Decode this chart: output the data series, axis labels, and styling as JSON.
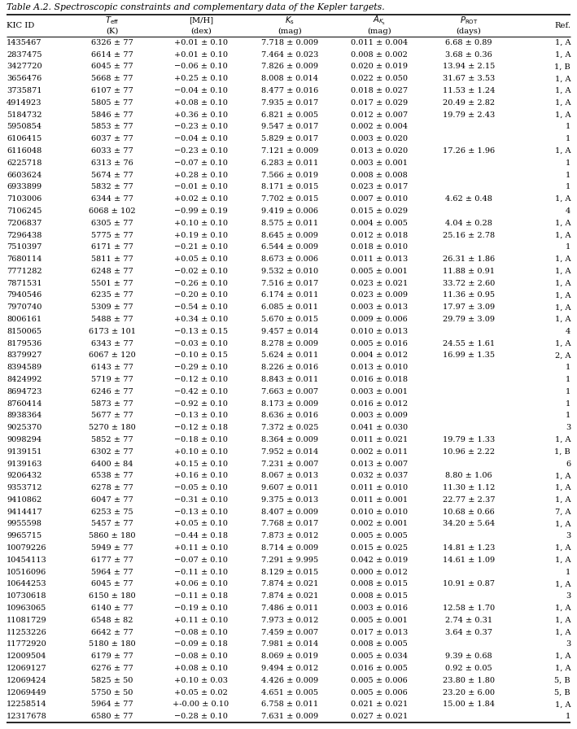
{
  "title": "Table A.2. Spectroscopic constraints and complementary data of the Kepler targets.",
  "headers_l1": [
    "KIC ID",
    "$T_{\\mathrm{eff}}$",
    "[M/H]",
    "$K_{\\mathrm{s}}$",
    "$A_{K_{\\mathrm{s}}}$",
    "$P_{\\mathrm{ROT}}$",
    "Ref."
  ],
  "headers_l2": [
    "",
    "(K)",
    "(dex)",
    "(mag)",
    "(mag)",
    "(days)",
    ""
  ],
  "rows": [
    [
      "1435467",
      "6326 ± 77",
      "+0.01 ± 0.10",
      "7.718 ± 0.009",
      "0.011 ± 0.004",
      "6.68 ± 0.89",
      "1, A"
    ],
    [
      "2837475",
      "6614 ± 77",
      "+0.01 ± 0.10",
      "7.464 ± 0.023",
      "0.008 ± 0.002",
      "3.68 ± 0.36",
      "1, A"
    ],
    [
      "3427720",
      "6045 ± 77",
      "−0.06 ± 0.10",
      "7.826 ± 0.009",
      "0.020 ± 0.019",
      "13.94 ± 2.15",
      "1, B"
    ],
    [
      "3656476",
      "5668 ± 77",
      "+0.25 ± 0.10",
      "8.008 ± 0.014",
      "0.022 ± 0.050",
      "31.67 ± 3.53",
      "1, A"
    ],
    [
      "3735871",
      "6107 ± 77",
      "−0.04 ± 0.10",
      "8.477 ± 0.016",
      "0.018 ± 0.027",
      "11.53 ± 1.24",
      "1, A"
    ],
    [
      "4914923",
      "5805 ± 77",
      "+0.08 ± 0.10",
      "7.935 ± 0.017",
      "0.017 ± 0.029",
      "20.49 ± 2.82",
      "1, A"
    ],
    [
      "5184732",
      "5846 ± 77",
      "+0.36 ± 0.10",
      "6.821 ± 0.005",
      "0.012 ± 0.007",
      "19.79 ± 2.43",
      "1, A"
    ],
    [
      "5950854",
      "5853 ± 77",
      "−0.23 ± 0.10",
      "9.547 ± 0.017",
      "0.002 ± 0.004",
      "",
      "1"
    ],
    [
      "6106415",
      "6037 ± 77",
      "−0.04 ± 0.10",
      "5.829 ± 0.017",
      "0.003 ± 0.020",
      "",
      "1"
    ],
    [
      "6116048",
      "6033 ± 77",
      "−0.23 ± 0.10",
      "7.121 ± 0.009",
      "0.013 ± 0.020",
      "17.26 ± 1.96",
      "1, A"
    ],
    [
      "6225718",
      "6313 ± 76",
      "−0.07 ± 0.10",
      "6.283 ± 0.011",
      "0.003 ± 0.001",
      "",
      "1"
    ],
    [
      "6603624",
      "5674 ± 77",
      "+0.28 ± 0.10",
      "7.566 ± 0.019",
      "0.008 ± 0.008",
      "",
      "1"
    ],
    [
      "6933899",
      "5832 ± 77",
      "−0.01 ± 0.10",
      "8.171 ± 0.015",
      "0.023 ± 0.017",
      "",
      "1"
    ],
    [
      "7103006",
      "6344 ± 77",
      "+0.02 ± 0.10",
      "7.702 ± 0.015",
      "0.007 ± 0.010",
      "4.62 ± 0.48",
      "1, A"
    ],
    [
      "7106245",
      "6068 ± 102",
      "−0.99 ± 0.19",
      "9.419 ± 0.006",
      "0.015 ± 0.029",
      "",
      "4"
    ],
    [
      "7206837",
      "6305 ± 77",
      "+0.10 ± 0.10",
      "8.575 ± 0.011",
      "0.004 ± 0.005",
      "4.04 ± 0.28",
      "1, A"
    ],
    [
      "7296438",
      "5775 ± 77",
      "+0.19 ± 0.10",
      "8.645 ± 0.009",
      "0.012 ± 0.018",
      "25.16 ± 2.78",
      "1, A"
    ],
    [
      "7510397",
      "6171 ± 77",
      "−0.21 ± 0.10",
      "6.544 ± 0.009",
      "0.018 ± 0.010",
      "",
      "1"
    ],
    [
      "7680114",
      "5811 ± 77",
      "+0.05 ± 0.10",
      "8.673 ± 0.006",
      "0.011 ± 0.013",
      "26.31 ± 1.86",
      "1, A"
    ],
    [
      "7771282",
      "6248 ± 77",
      "−0.02 ± 0.10",
      "9.532 ± 0.010",
      "0.005 ± 0.001",
      "11.88 ± 0.91",
      "1, A"
    ],
    [
      "7871531",
      "5501 ± 77",
      "−0.26 ± 0.10",
      "7.516 ± 0.017",
      "0.023 ± 0.021",
      "33.72 ± 2.60",
      "1, A"
    ],
    [
      "7940546",
      "6235 ± 77",
      "−0.20 ± 0.10",
      "6.174 ± 0.011",
      "0.023 ± 0.009",
      "11.36 ± 0.95",
      "1, A"
    ],
    [
      "7970740",
      "5309 ± 77",
      "−0.54 ± 0.10",
      "6.085 ± 0.011",
      "0.003 ± 0.013",
      "17.97 ± 3.09",
      "1, A"
    ],
    [
      "8006161",
      "5488 ± 77",
      "+0.34 ± 0.10",
      "5.670 ± 0.015",
      "0.009 ± 0.006",
      "29.79 ± 3.09",
      "1, A"
    ],
    [
      "8150065",
      "6173 ± 101",
      "−0.13 ± 0.15",
      "9.457 ± 0.014",
      "0.010 ± 0.013",
      "",
      "4"
    ],
    [
      "8179536",
      "6343 ± 77",
      "−0.03 ± 0.10",
      "8.278 ± 0.009",
      "0.005 ± 0.016",
      "24.55 ± 1.61",
      "1, A"
    ],
    [
      "8379927",
      "6067 ± 120",
      "−0.10 ± 0.15",
      "5.624 ± 0.011",
      "0.004 ± 0.012",
      "16.99 ± 1.35",
      "2, A"
    ],
    [
      "8394589",
      "6143 ± 77",
      "−0.29 ± 0.10",
      "8.226 ± 0.016",
      "0.013 ± 0.010",
      "",
      "1"
    ],
    [
      "8424992",
      "5719 ± 77",
      "−0.12 ± 0.10",
      "8.843 ± 0.011",
      "0.016 ± 0.018",
      "",
      "1"
    ],
    [
      "8694723",
      "6246 ± 77",
      "−0.42 ± 0.10",
      "7.663 ± 0.007",
      "0.003 ± 0.001",
      "",
      "1"
    ],
    [
      "8760414",
      "5873 ± 77",
      "−0.92 ± 0.10",
      "8.173 ± 0.009",
      "0.016 ± 0.012",
      "",
      "1"
    ],
    [
      "8938364",
      "5677 ± 77",
      "−0.13 ± 0.10",
      "8.636 ± 0.016",
      "0.003 ± 0.009",
      "",
      "1"
    ],
    [
      "9025370",
      "5270 ± 180",
      "−0.12 ± 0.18",
      "7.372 ± 0.025",
      "0.041 ± 0.030",
      "",
      "3"
    ],
    [
      "9098294",
      "5852 ± 77",
      "−0.18 ± 0.10",
      "8.364 ± 0.009",
      "0.011 ± 0.021",
      "19.79 ± 1.33",
      "1, A"
    ],
    [
      "9139151",
      "6302 ± 77",
      "+0.10 ± 0.10",
      "7.952 ± 0.014",
      "0.002 ± 0.011",
      "10.96 ± 2.22",
      "1, B"
    ],
    [
      "9139163",
      "6400 ± 84",
      "+0.15 ± 0.10",
      "7.231 ± 0.007",
      "0.013 ± 0.007",
      "",
      "6"
    ],
    [
      "9206432",
      "6538 ± 77",
      "+0.16 ± 0.10",
      "8.067 ± 0.013",
      "0.032 ± 0.037",
      "8.80 ± 1.06",
      "1, A"
    ],
    [
      "9353712",
      "6278 ± 77",
      "−0.05 ± 0.10",
      "9.607 ± 0.011",
      "0.011 ± 0.010",
      "11.30 ± 1.12",
      "1, A"
    ],
    [
      "9410862",
      "6047 ± 77",
      "−0.31 ± 0.10",
      "9.375 ± 0.013",
      "0.011 ± 0.001",
      "22.77 ± 2.37",
      "1, A"
    ],
    [
      "9414417",
      "6253 ± 75",
      "−0.13 ± 0.10",
      "8.407 ± 0.009",
      "0.010 ± 0.010",
      "10.68 ± 0.66",
      "7, A"
    ],
    [
      "9955598",
      "5457 ± 77",
      "+0.05 ± 0.10",
      "7.768 ± 0.017",
      "0.002 ± 0.001",
      "34.20 ± 5.64",
      "1, A"
    ],
    [
      "9965715",
      "5860 ± 180",
      "−0.44 ± 0.18",
      "7.873 ± 0.012",
      "0.005 ± 0.005",
      "",
      "3"
    ],
    [
      "10079226",
      "5949 ± 77",
      "+0.11 ± 0.10",
      "8.714 ± 0.009",
      "0.015 ± 0.025",
      "14.81 ± 1.23",
      "1, A"
    ],
    [
      "10454113",
      "6177 ± 77",
      "−0.07 ± 0.10",
      "7.291 ± 9.995",
      "0.042 ± 0.019",
      "14.61 ± 1.09",
      "1, A"
    ],
    [
      "10516096",
      "5964 ± 77",
      "−0.11 ± 0.10",
      "8.129 ± 0.015",
      "0.000 ± 0.012",
      "",
      "1"
    ],
    [
      "10644253",
      "6045 ± 77",
      "+0.06 ± 0.10",
      "7.874 ± 0.021",
      "0.008 ± 0.015",
      "10.91 ± 0.87",
      "1, A"
    ],
    [
      "10730618",
      "6150 ± 180",
      "−0.11 ± 0.18",
      "7.874 ± 0.021",
      "0.008 ± 0.015",
      "",
      "3"
    ],
    [
      "10963065",
      "6140 ± 77",
      "−0.19 ± 0.10",
      "7.486 ± 0.011",
      "0.003 ± 0.016",
      "12.58 ± 1.70",
      "1, A"
    ],
    [
      "11081729",
      "6548 ± 82",
      "+0.11 ± 0.10",
      "7.973 ± 0.012",
      "0.005 ± 0.001",
      "2.74 ± 0.31",
      "1, A"
    ],
    [
      "11253226",
      "6642 ± 77",
      "−0.08 ± 0.10",
      "7.459 ± 0.007",
      "0.017 ± 0.013",
      "3.64 ± 0.37",
      "1, A"
    ],
    [
      "11772920",
      "5180 ± 180",
      "−0.09 ± 0.18",
      "7.981 ± 0.014",
      "0.008 ± 0.005",
      "",
      "3"
    ],
    [
      "12009504",
      "6179 ± 77",
      "−0.08 ± 0.10",
      "8.069 ± 0.019",
      "0.005 ± 0.034",
      "9.39 ± 0.68",
      "1, A"
    ],
    [
      "12069127",
      "6276 ± 77",
      "+0.08 ± 0.10",
      "9.494 ± 0.012",
      "0.016 ± 0.005",
      "0.92 ± 0.05",
      "1, A"
    ],
    [
      "12069424",
      "5825 ± 50",
      "+0.10 ± 0.03",
      "4.426 ± 0.009",
      "0.005 ± 0.006",
      "23.80 ± 1.80",
      "5, B"
    ],
    [
      "12069449",
      "5750 ± 50",
      "+0.05 ± 0.02",
      "4.651 ± 0.005",
      "0.005 ± 0.006",
      "23.20 ± 6.00",
      "5, B"
    ],
    [
      "12258514",
      "5964 ± 77",
      "+-0.00 ± 0.10",
      "6.758 ± 0.011",
      "0.021 ± 0.021",
      "15.00 ± 1.84",
      "1, A"
    ],
    [
      "12317678",
      "6580 ± 77",
      "−0.28 ± 0.10",
      "7.631 ± 0.009",
      "0.027 ± 0.021",
      "",
      "1"
    ]
  ],
  "fontsize": 7.0,
  "header_fontsize": 7.2,
  "title_fontsize": 7.8,
  "bg_color": "#ffffff"
}
